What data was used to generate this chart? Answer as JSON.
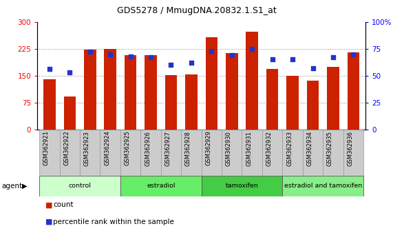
{
  "title": "GDS5278 / MmugDNA.20832.1.S1_at",
  "samples": [
    "GSM362921",
    "GSM362922",
    "GSM362923",
    "GSM362924",
    "GSM362925",
    "GSM362926",
    "GSM362927",
    "GSM362928",
    "GSM362929",
    "GSM362930",
    "GSM362931",
    "GSM362932",
    "GSM362933",
    "GSM362934",
    "GSM362935",
    "GSM362936"
  ],
  "counts": [
    140,
    92,
    222,
    224,
    208,
    208,
    152,
    153,
    257,
    213,
    272,
    168,
    150,
    136,
    175,
    215
  ],
  "percentile_ranks": [
    56,
    53,
    72,
    70,
    68,
    67,
    60,
    62,
    73,
    69,
    75,
    65,
    65,
    57,
    67,
    70
  ],
  "groups": [
    {
      "label": "control",
      "start": 0,
      "end": 4,
      "color": "#ccffcc"
    },
    {
      "label": "estradiol",
      "start": 4,
      "end": 8,
      "color": "#66ee66"
    },
    {
      "label": "tamoxifen",
      "start": 8,
      "end": 12,
      "color": "#44cc44"
    },
    {
      "label": "estradiol and tamoxifen",
      "start": 12,
      "end": 16,
      "color": "#88ee88"
    }
  ],
  "ylim_left": [
    0,
    300
  ],
  "ylim_right": [
    0,
    100
  ],
  "yticks_left": [
    0,
    75,
    150,
    225,
    300
  ],
  "yticks_right": [
    0,
    25,
    50,
    75,
    100
  ],
  "bar_color": "#cc2200",
  "dot_color": "#2233cc",
  "background_color": "#ffffff",
  "plot_bg_color": "#ffffff",
  "grid_color": "#888888",
  "agent_label": "agent",
  "legend_count": "count",
  "legend_pct": "percentile rank within the sample",
  "tick_bg_color": "#cccccc",
  "tick_border_color": "#999999"
}
